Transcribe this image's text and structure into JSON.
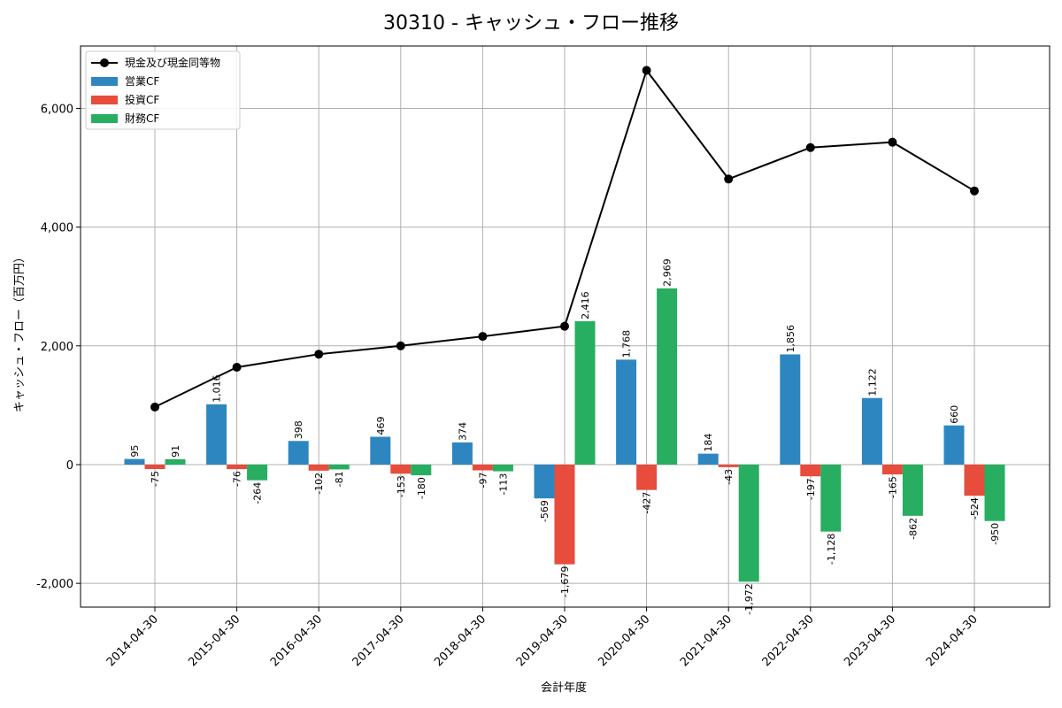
{
  "chart_data": {
    "type": "bar",
    "title": "30310 - キャッシュ・フロー推移",
    "xlabel": "会計年度",
    "ylabel": "キャッシュ・フロー（百万円）",
    "categories": [
      "2014-04-30",
      "2015-04-30",
      "2016-04-30",
      "2017-04-30",
      "2018-04-30",
      "2019-04-30",
      "2020-04-30",
      "2021-04-30",
      "2022-04-30",
      "2023-04-30",
      "2024-04-30"
    ],
    "ylim": [
      -2400,
      7050
    ],
    "yticks": [
      -2000,
      0,
      2000,
      4000,
      6000
    ],
    "ytick_labels": [
      "-2,000",
      "0",
      "2,000",
      "4,000",
      "6,000"
    ],
    "grid": true,
    "legend_position": "top-left",
    "series": [
      {
        "name": "営業CF",
        "kind": "bar",
        "color": "#2e86c1",
        "values": [
          95,
          1016,
          398,
          469,
          374,
          -569,
          1768,
          184,
          1856,
          1122,
          660
        ],
        "labels": [
          "95",
          "1,016",
          "398",
          "469",
          "374",
          "-569",
          "1,768",
          "184",
          "1,856",
          "1,122",
          "660"
        ]
      },
      {
        "name": "投資CF",
        "kind": "bar",
        "color": "#e74c3c",
        "values": [
          -75,
          -76,
          -102,
          -153,
          -97,
          -1679,
          -427,
          -43,
          -197,
          -165,
          -524
        ],
        "labels": [
          "-75",
          "-76",
          "-102",
          "-153",
          "-97",
          "-1,679",
          "-427",
          "-43",
          "-197",
          "-165",
          "-524"
        ]
      },
      {
        "name": "財務CF",
        "kind": "bar",
        "color": "#27ae60",
        "values": [
          91,
          -264,
          -81,
          -180,
          -113,
          2416,
          2969,
          -1972,
          -1128,
          -862,
          -950
        ],
        "labels": [
          "91",
          "-264",
          "-81",
          "-180",
          "-113",
          "2,416",
          "2,969",
          "-1,972",
          "-1,128",
          "-862",
          "-950"
        ]
      },
      {
        "name": "現金及び現金同等物",
        "kind": "line",
        "color": "#000000",
        "values": [
          970,
          1640,
          1860,
          2000,
          2160,
          2330,
          6640,
          4810,
          5340,
          5430,
          4610
        ]
      }
    ]
  }
}
